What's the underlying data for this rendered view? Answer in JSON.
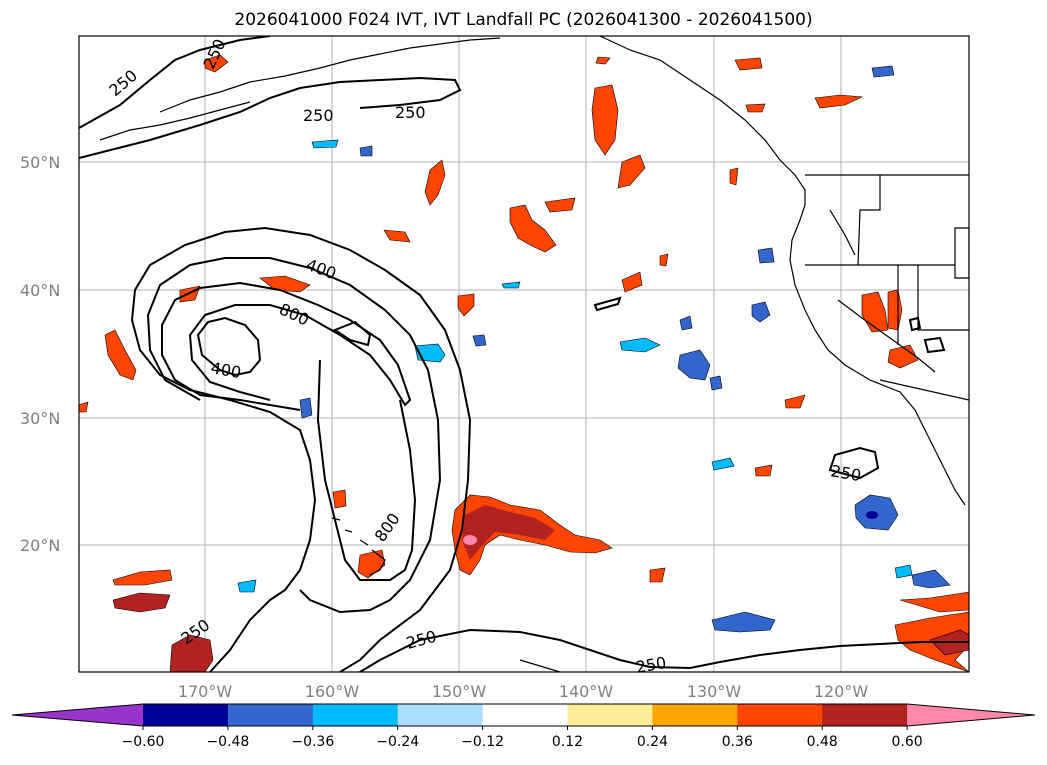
{
  "title": "2026041000 F024 IVT, IVT Landfall PC (2026041300 - 2026041500)",
  "gridlines": true,
  "lat_labels": [
    "50°N",
    "40°N",
    "30°N",
    "20°N"
  ],
  "lon_labels": [
    "170°W",
    "160°W",
    "150°W",
    "140°W",
    "130°W",
    "120°W"
  ],
  "contour_labels": [
    "250",
    "250",
    "250",
    "400",
    "800",
    "400",
    "800",
    "250",
    "250",
    "250"
  ],
  "colorbar": {
    "ticks": [
      "−0.60",
      "−0.48",
      "−0.36",
      "−0.24",
      "−0.12",
      "0.12",
      "0.24",
      "0.36",
      "0.48",
      "0.60"
    ],
    "colors": [
      "#9933cc",
      "#000099",
      "#3366cc",
      "#00bbff",
      "#aaddff",
      "#ffffff",
      "#ffee99",
      "#ffa500",
      "#ff4500",
      "#b22222",
      "#ff88aa"
    ],
    "extend": "both"
  }
}
